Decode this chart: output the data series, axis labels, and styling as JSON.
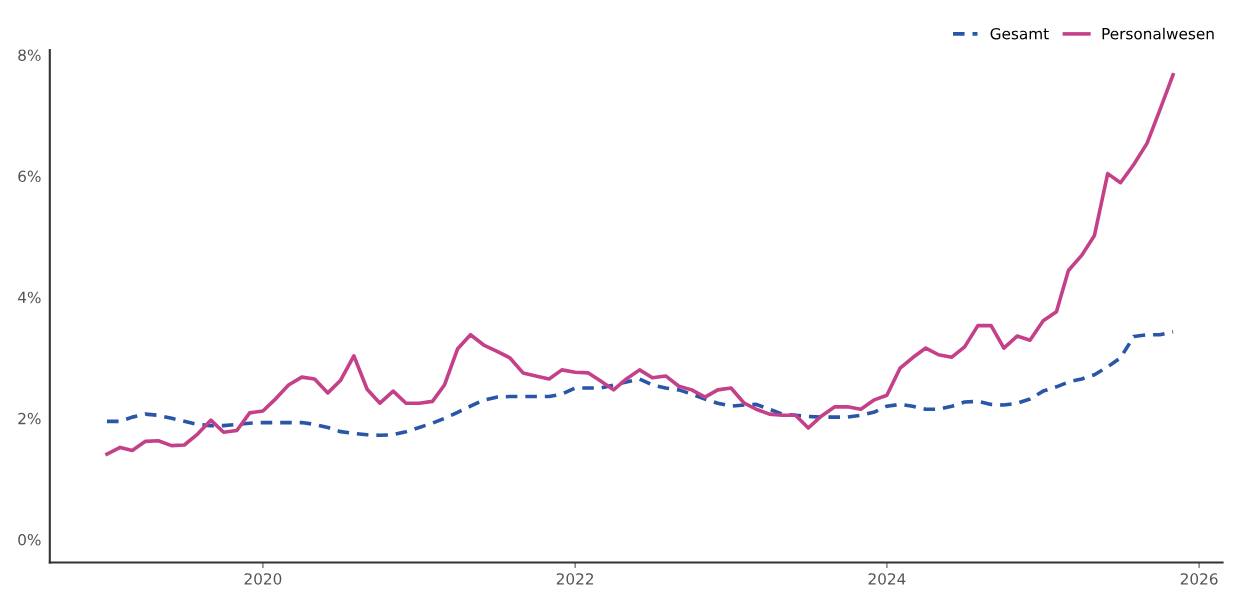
{
  "chart_data": {
    "type": "line",
    "x": [
      "2019-01",
      "2019-02",
      "2019-03",
      "2019-04",
      "2019-05",
      "2019-06",
      "2019-07",
      "2019-08",
      "2019-09",
      "2019-10",
      "2019-11",
      "2019-12",
      "2020-01",
      "2020-02",
      "2020-03",
      "2020-04",
      "2020-05",
      "2020-06",
      "2020-07",
      "2020-08",
      "2020-09",
      "2020-10",
      "2020-11",
      "2020-12",
      "2021-01",
      "2021-02",
      "2021-03",
      "2021-04",
      "2021-05",
      "2021-06",
      "2021-07",
      "2021-08",
      "2021-09",
      "2021-10",
      "2021-11",
      "2021-12",
      "2022-01",
      "2022-02",
      "2022-03",
      "2022-04",
      "2022-05",
      "2022-06",
      "2022-07",
      "2022-08",
      "2022-09",
      "2022-10",
      "2022-11",
      "2022-12",
      "2023-01",
      "2023-02",
      "2023-03",
      "2023-04",
      "2023-05",
      "2023-06",
      "2023-07",
      "2023-08",
      "2023-09",
      "2023-10",
      "2023-11",
      "2023-12",
      "2024-01",
      "2024-02",
      "2024-03",
      "2024-04",
      "2024-05",
      "2024-06",
      "2024-07",
      "2024-08",
      "2024-09",
      "2024-10",
      "2024-11",
      "2024-12",
      "2025-01",
      "2025-02",
      "2025-03",
      "2025-04",
      "2025-05",
      "2025-06",
      "2025-07",
      "2025-08",
      "2025-09",
      "2025-10",
      "2025-11"
    ],
    "series": [
      {
        "name": "Gesamt",
        "color": "#2a56a8",
        "line_style": "dashed",
        "values": [
          1.95,
          1.95,
          2.02,
          2.07,
          2.05,
          2.0,
          1.95,
          1.9,
          1.88,
          1.88,
          1.9,
          1.92,
          1.93,
          1.93,
          1.93,
          1.93,
          1.9,
          1.85,
          1.78,
          1.75,
          1.73,
          1.72,
          1.73,
          1.78,
          1.85,
          1.92,
          2.0,
          2.1,
          2.2,
          2.3,
          2.35,
          2.36,
          2.36,
          2.36,
          2.36,
          2.4,
          2.5,
          2.5,
          2.5,
          2.55,
          2.6,
          2.65,
          2.55,
          2.5,
          2.47,
          2.4,
          2.32,
          2.25,
          2.2,
          2.22,
          2.23,
          2.15,
          2.07,
          2.05,
          2.03,
          2.02,
          2.02,
          2.02,
          2.05,
          2.1,
          2.2,
          2.23,
          2.2,
          2.15,
          2.15,
          2.2,
          2.27,
          2.28,
          2.23,
          2.22,
          2.25,
          2.32,
          2.45,
          2.52,
          2.6,
          2.65,
          2.72,
          2.85,
          3.0,
          3.35,
          3.38,
          3.38,
          3.43
        ]
      },
      {
        "name": "Personalwesen",
        "color": "#c4418a",
        "line_style": "solid",
        "values": [
          1.41,
          1.52,
          1.47,
          1.62,
          1.63,
          1.55,
          1.56,
          1.74,
          1.97,
          1.77,
          1.8,
          2.09,
          2.12,
          2.33,
          2.55,
          2.68,
          2.65,
          2.42,
          2.63,
          3.03,
          2.48,
          2.25,
          2.45,
          2.25,
          2.25,
          2.28,
          2.55,
          3.15,
          3.38,
          3.21,
          3.11,
          3.0,
          2.75,
          2.7,
          2.65,
          2.8,
          2.76,
          2.75,
          2.62,
          2.47,
          2.65,
          2.8,
          2.67,
          2.7,
          2.53,
          2.47,
          2.35,
          2.47,
          2.5,
          2.25,
          2.15,
          2.07,
          2.05,
          2.05,
          1.84,
          2.04,
          2.19,
          2.19,
          2.15,
          2.3,
          2.38,
          2.83,
          3.0,
          3.16,
          3.05,
          3.01,
          3.18,
          3.53,
          3.53,
          3.16,
          3.36,
          3.29,
          3.61,
          3.76,
          4.44,
          4.69,
          5.02,
          6.04,
          5.89,
          6.19,
          6.54,
          7.09,
          7.67
        ]
      }
    ],
    "xlim": [
      "2018-08-20",
      "2026-02-25"
    ],
    "xticks": [
      "2020",
      "2022",
      "2024",
      "2026"
    ],
    "ylim": [
      -0.38,
      8.08
    ],
    "yticks": [
      {
        "value": 0,
        "label": "0%"
      },
      {
        "value": 2,
        "label": "2%"
      },
      {
        "value": 4,
        "label": "4%"
      },
      {
        "value": 6,
        "label": "6%"
      },
      {
        "value": 8,
        "label": "8%"
      }
    ],
    "grid": false,
    "legend": "top right",
    "marker": "none"
  }
}
